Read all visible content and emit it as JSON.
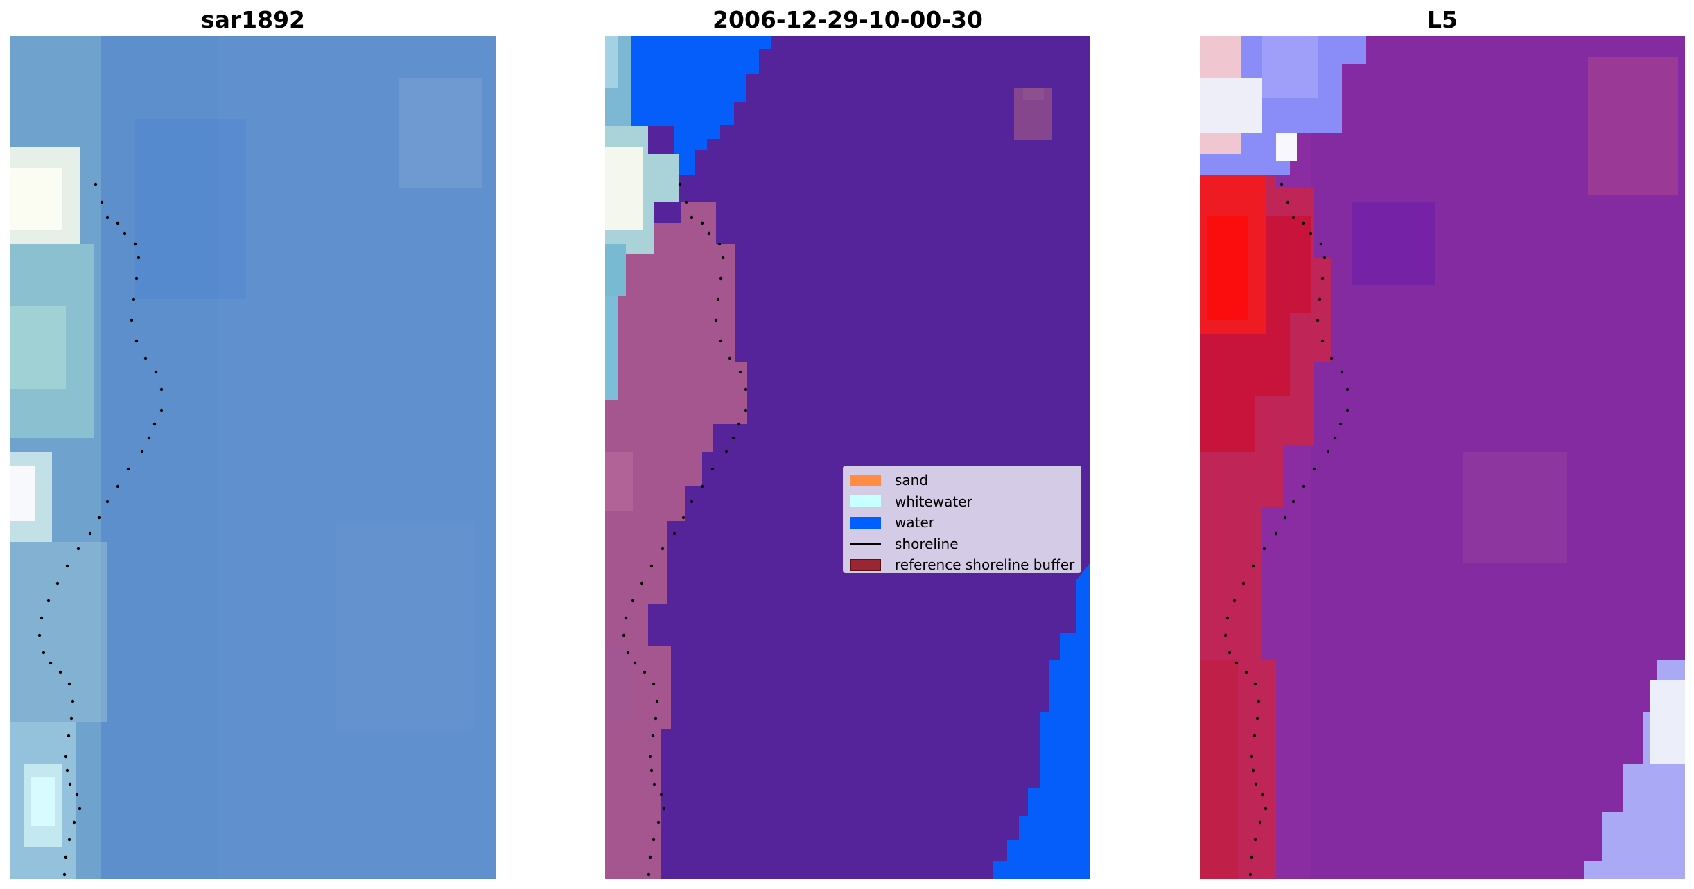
{
  "panels": [
    {
      "title": "sar1892",
      "kind": "rgb-image",
      "base_color": "#5d8fcc",
      "shore_color": "#eef0ee"
    },
    {
      "title": "2006-12-29-10-00-30",
      "kind": "classified-image",
      "base_color": "#55239a",
      "sand_overlay_color": "#a5568f",
      "water_color": "#055ef9"
    },
    {
      "title": "L5",
      "kind": "index-map",
      "base_color": "#8a2da3",
      "land_color": "#c8143a",
      "white_color": "#eef0f8"
    }
  ],
  "legend": {
    "items": [
      {
        "label": "sand",
        "type": "patch",
        "color": "#ff8c42"
      },
      {
        "label": "whitewater",
        "type": "patch",
        "color": "#c8ffff"
      },
      {
        "label": "water",
        "type": "patch",
        "color": "#0060ff"
      },
      {
        "label": "shoreline",
        "type": "line",
        "color": "#000000"
      },
      {
        "label": "reference shoreline buffer",
        "type": "patch",
        "color": "#9a2633"
      }
    ]
  }
}
